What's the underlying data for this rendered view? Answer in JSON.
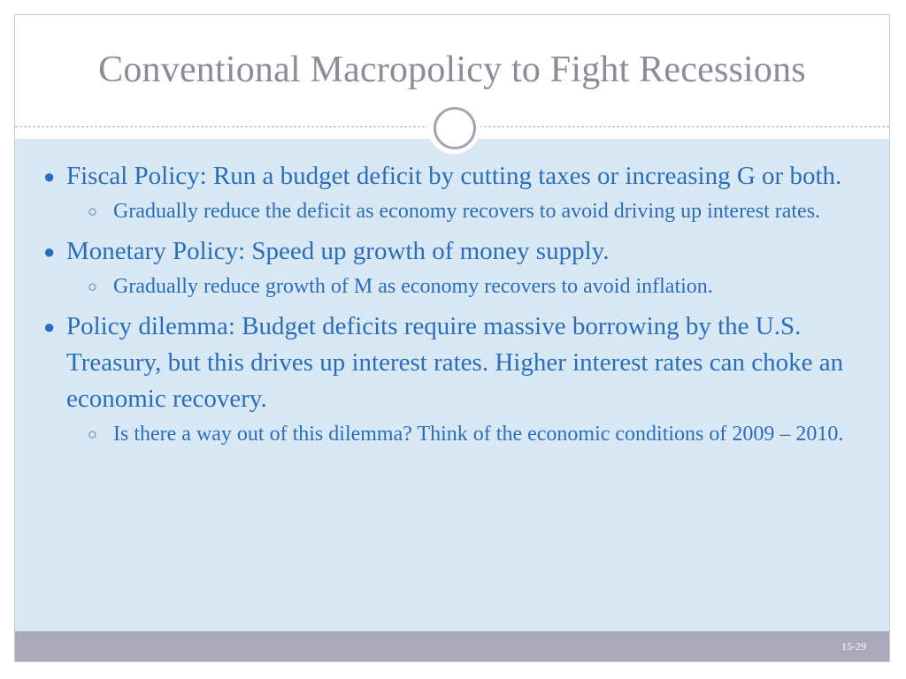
{
  "slide": {
    "title": "Conventional Macropolicy to Fight Recessions",
    "page_number": "15-29",
    "bullets": [
      {
        "text": "Fiscal Policy: Run a budget deficit by cutting taxes or increasing G or both.",
        "sub": "Gradually reduce the deficit as economy recovers to avoid driving up interest rates."
      },
      {
        "text": "Monetary Policy: Speed up growth of money supply.",
        "sub": "Gradually reduce growth of M as economy recovers to avoid inflation."
      },
      {
        "text": "Policy dilemma: Budget deficits require massive borrowing by the U.S. Treasury, but this drives up interest rates. Higher interest rates can choke an economic recovery.",
        "sub": "Is there a way out of this dilemma? Think of the economic conditions of 2009 – 2010."
      }
    ]
  }
}
